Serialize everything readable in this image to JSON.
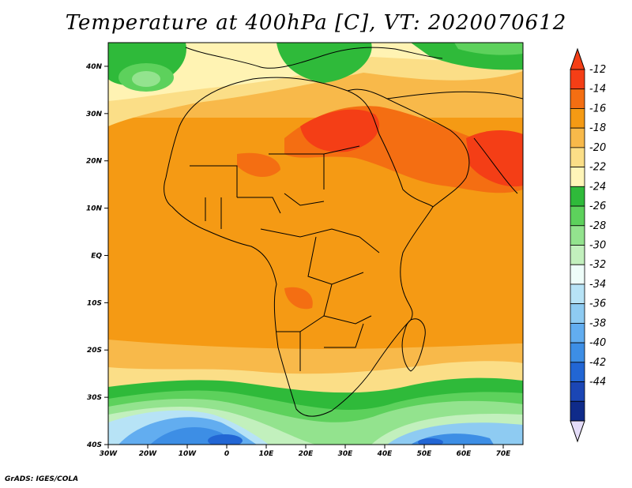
{
  "title": "Temperature at 400hPa [C], VT: 2020070612",
  "credit": "GrADS: IGES/COLA",
  "map": {
    "lat_ticks": [
      "40N",
      "30N",
      "20N",
      "10N",
      "EQ",
      "10S",
      "20S",
      "30S",
      "40S"
    ],
    "lon_ticks": [
      "30W",
      "20W",
      "10W",
      "0",
      "10E",
      "20E",
      "30E",
      "40E",
      "50E",
      "60E",
      "70E"
    ],
    "lat_range": [
      -40,
      45
    ],
    "lon_range": [
      -30,
      75
    ]
  },
  "colorbar": {
    "labels": [
      "-12",
      "-14",
      "-16",
      "-18",
      "-20",
      "-22",
      "-24",
      "-26",
      "-28",
      "-30",
      "-32",
      "-34",
      "-36",
      "-38",
      "-40",
      "-42",
      "-44"
    ],
    "colors": [
      "#f43e16",
      "#f46e12",
      "#f59a14",
      "#f8b94a",
      "#fbde87",
      "#fff5b8",
      "#2fba3a",
      "#5dd15c",
      "#93e38e",
      "#c2f0bd",
      "#eefdf9",
      "#b7e3f6",
      "#8ecbf2",
      "#62adf0",
      "#3d8ee5",
      "#2266d4",
      "#1b46b5",
      "#0f2b8a"
    ],
    "cap_top": "#f43e16",
    "cap_bottom": "#e4dcf8"
  }
}
